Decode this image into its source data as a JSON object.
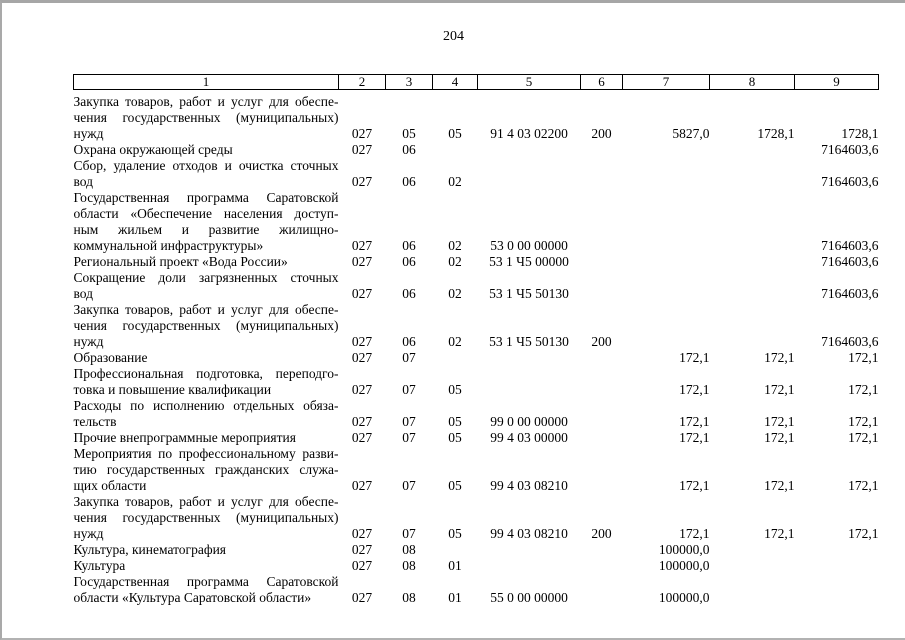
{
  "page": {
    "number": "204"
  },
  "colors": {
    "text": "#000000",
    "page_background": "#ffffff",
    "frame_border": "#a9a9a9",
    "table_border": "#000000"
  },
  "table": {
    "columns": [
      "1",
      "2",
      "3",
      "4",
      "5",
      "6",
      "7",
      "8",
      "9"
    ],
    "rows": [
      {
        "name": [
          "Закупка товаров, работ и услуг для обеспе-",
          "чения государственных (муниципальных)",
          "нужд"
        ],
        "cells": [
          "027",
          "05",
          "05",
          "91 4 03 02200",
          "200",
          "5827,0",
          "1728,1",
          "1728,1"
        ]
      },
      {
        "name": [
          "Охрана окружающей среды"
        ],
        "cells": [
          "027",
          "06",
          "",
          "",
          "",
          "",
          "",
          "7164603,6"
        ]
      },
      {
        "name": [
          "Сбор, удаление отходов и очистка сточных",
          "вод"
        ],
        "cells": [
          "027",
          "06",
          "02",
          "",
          "",
          "",
          "",
          "7164603,6"
        ]
      },
      {
        "name": [
          "Государственная программа Саратовской",
          "области «Обеспечение населения доступ-",
          "ным жильем и развитие жилищно-",
          "коммунальной инфраструктуры»"
        ],
        "cells": [
          "027",
          "06",
          "02",
          "53 0 00 00000",
          "",
          "",
          "",
          "7164603,6"
        ]
      },
      {
        "name": [
          "Региональный проект «Вода России»"
        ],
        "cells": [
          "027",
          "06",
          "02",
          "53 1 Ч5 00000",
          "",
          "",
          "",
          "7164603,6"
        ]
      },
      {
        "name": [
          "Сокращение доли загрязненных сточных",
          "вод"
        ],
        "cells": [
          "027",
          "06",
          "02",
          "53 1 Ч5 50130",
          "",
          "",
          "",
          "7164603,6"
        ]
      },
      {
        "name": [
          "Закупка товаров, работ и услуг для обеспе-",
          "чения государственных (муниципальных)",
          "нужд"
        ],
        "cells": [
          "027",
          "06",
          "02",
          "53 1 Ч5 50130",
          "200",
          "",
          "",
          "7164603,6"
        ]
      },
      {
        "name": [
          "Образование"
        ],
        "cells": [
          "027",
          "07",
          "",
          "",
          "",
          "172,1",
          "172,1",
          "172,1"
        ]
      },
      {
        "name": [
          "Профессиональная подготовка, переподго-",
          "товка и повышение квалификации"
        ],
        "cells": [
          "027",
          "07",
          "05",
          "",
          "",
          "172,1",
          "172,1",
          "172,1"
        ]
      },
      {
        "name": [
          "Расходы по исполнению отдельных обяза-",
          "тельств"
        ],
        "cells": [
          "027",
          "07",
          "05",
          "99 0 00 00000",
          "",
          "172,1",
          "172,1",
          "172,1"
        ]
      },
      {
        "name": [
          "Прочие внепрограммные мероприятия"
        ],
        "cells": [
          "027",
          "07",
          "05",
          "99 4 03 00000",
          "",
          "172,1",
          "172,1",
          "172,1"
        ]
      },
      {
        "name": [
          "Мероприятия по профессиональному разви-",
          "тию государственных гражданских служа-",
          "щих области"
        ],
        "cells": [
          "027",
          "07",
          "05",
          "99 4 03 08210",
          "",
          "172,1",
          "172,1",
          "172,1"
        ]
      },
      {
        "name": [
          "Закупка товаров, работ и услуг для обеспе-",
          "чения государственных (муниципальных)",
          "нужд"
        ],
        "cells": [
          "027",
          "07",
          "05",
          "99 4 03 08210",
          "200",
          "172,1",
          "172,1",
          "172,1"
        ]
      },
      {
        "name": [
          "Культура, кинематография"
        ],
        "cells": [
          "027",
          "08",
          "",
          "",
          "",
          "100000,0",
          "",
          ""
        ]
      },
      {
        "name": [
          "Культура"
        ],
        "cells": [
          "027",
          "08",
          "01",
          "",
          "",
          "100000,0",
          "",
          ""
        ]
      },
      {
        "name": [
          "Государственная программа Саратовской",
          "области «Культура Саратовской области»"
        ],
        "cells": [
          "027",
          "08",
          "01",
          "55 0 00 00000",
          "",
          "100000,0",
          "",
          ""
        ]
      }
    ]
  }
}
